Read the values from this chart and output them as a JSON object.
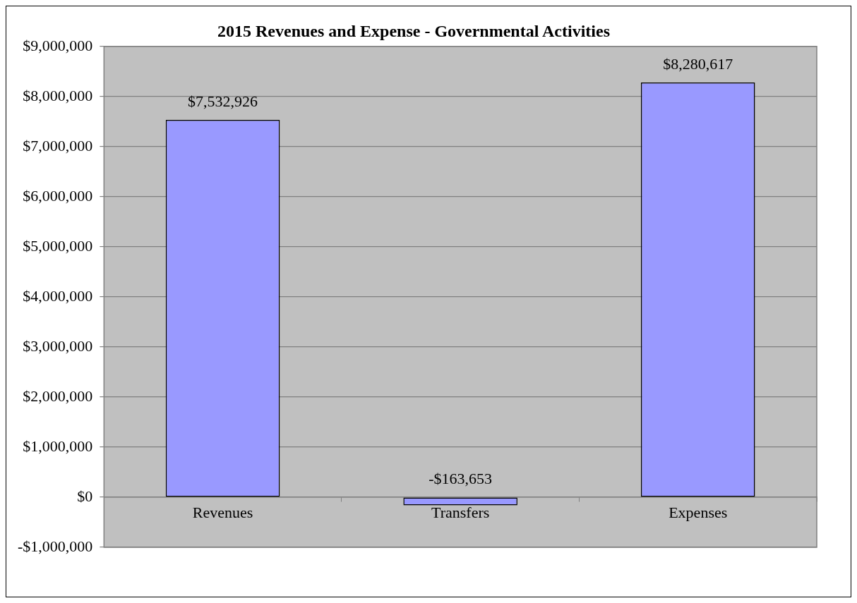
{
  "chart_data": {
    "type": "bar",
    "title": "2015 Revenues and Expense - Governmental Activities",
    "categories": [
      "Revenues",
      "Transfers",
      "Expenses"
    ],
    "values": [
      7532926,
      -163653,
      8280617
    ],
    "value_labels": [
      "$7,532,926",
      "-$163,653",
      "$8,280,617"
    ],
    "color": "#9999ff",
    "ylim": [
      -1000000,
      9000000
    ],
    "yticks": [
      {
        "value": -1000000,
        "label": "-$1,000,000"
      },
      {
        "value": 0,
        "label": "$0"
      },
      {
        "value": 1000000,
        "label": "$1,000,000"
      },
      {
        "value": 2000000,
        "label": "$2,000,000"
      },
      {
        "value": 3000000,
        "label": "$3,000,000"
      },
      {
        "value": 4000000,
        "label": "$4,000,000"
      },
      {
        "value": 5000000,
        "label": "$5,000,000"
      },
      {
        "value": 6000000,
        "label": "$6,000,000"
      },
      {
        "value": 7000000,
        "label": "$7,000,000"
      },
      {
        "value": 8000000,
        "label": "$8,000,000"
      },
      {
        "value": 9000000,
        "label": "$9,000,000"
      }
    ],
    "grid": "y",
    "legend": false
  }
}
